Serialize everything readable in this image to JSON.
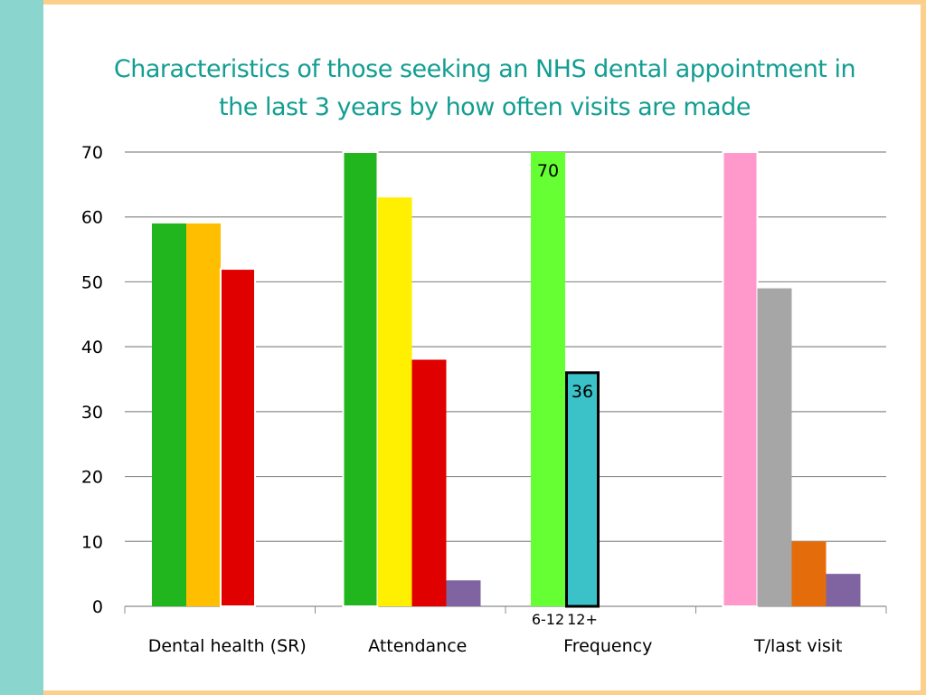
{
  "title_line1": "Characteristics of those seeking an NHS dental appointment in",
  "title_line2": "the last 3 years by how often visits are made",
  "chart_data": {
    "type": "bar",
    "title": "Characteristics of those seeking an NHS dental appointment in the last 3 years by how often visits are made",
    "ylim": [
      0,
      70
    ],
    "yticks": [
      0,
      10,
      20,
      30,
      40,
      50,
      60,
      70
    ],
    "grid": true,
    "categories": [
      "Dental health (SR)",
      "Attendance",
      "Frequency",
      "T/last visit"
    ],
    "groups": [
      {
        "category": "Dental health (SR)",
        "bars": [
          {
            "value": 59,
            "color": "#22b61e"
          },
          {
            "value": 59,
            "color": "#ffbf00"
          },
          {
            "value": 52,
            "color": "#e00000"
          }
        ]
      },
      {
        "category": "Attendance",
        "bars": [
          {
            "value": 70,
            "color": "#22b61e"
          },
          {
            "value": 63,
            "color": "#ffef00"
          },
          {
            "value": 38,
            "color": "#e00000"
          },
          {
            "value": 4,
            "color": "#8064a2"
          }
        ]
      },
      {
        "category": "Frequency",
        "bars": [
          {
            "value": 70,
            "color": "#66ff33",
            "label": "70",
            "sublabel": "6-12"
          },
          {
            "value": 36,
            "color": "#3bc2c8",
            "label": "36",
            "sublabel": "12+"
          }
        ]
      },
      {
        "category": "T/last visit",
        "bars": [
          {
            "value": 70,
            "color": "#ff99cc"
          },
          {
            "value": 49,
            "color": "#a6a6a6"
          },
          {
            "value": 10,
            "color": "#e46c0a"
          },
          {
            "value": 5,
            "color": "#8064a2"
          }
        ]
      }
    ]
  }
}
